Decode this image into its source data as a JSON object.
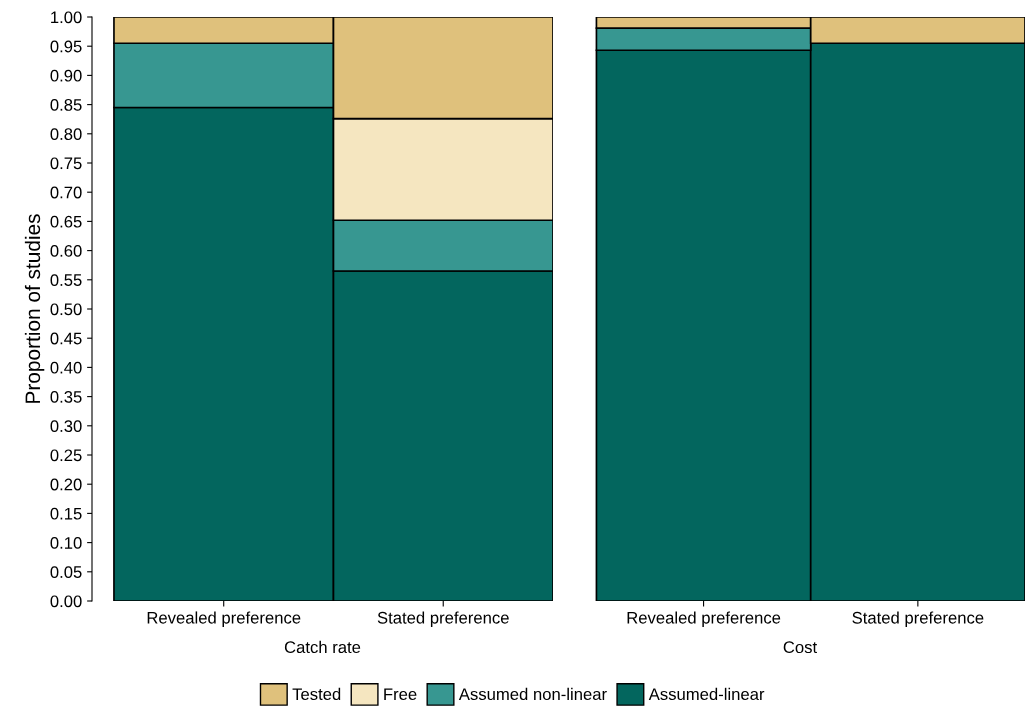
{
  "chart_data": [
    {
      "type": "bar",
      "stacked": true,
      "xlabel": "Catch rate",
      "ylabel": "Proportion of studies",
      "categories": [
        "Revealed preference",
        "Stated preference"
      ],
      "series": [
        {
          "name": "Assumed-linear",
          "color": "#03665e",
          "values": [
            0.845,
            0.565
          ]
        },
        {
          "name": "Assumed non-linear",
          "color": "#379791",
          "values": [
            0.11,
            0.087
          ]
        },
        {
          "name": "Free",
          "color": "#f5e6c0",
          "values": [
            0,
            0.174
          ]
        },
        {
          "name": "Tested",
          "color": "#dfc17c",
          "values": [
            0.045,
            0.174
          ]
        }
      ],
      "ylim": [
        0,
        1
      ],
      "yticks": [
        {
          "value": 0,
          "label": "0.00"
        },
        {
          "value": 0.05,
          "label": "0.05"
        },
        {
          "value": 0.1,
          "label": "0.10"
        },
        {
          "value": 0.15,
          "label": "0.15"
        },
        {
          "value": 0.2,
          "label": "0.20"
        },
        {
          "value": 0.25,
          "label": "0.25"
        },
        {
          "value": 0.3,
          "label": "0.30"
        },
        {
          "value": 0.35,
          "label": "0.35"
        },
        {
          "value": 0.4,
          "label": "0.40"
        },
        {
          "value": 0.45,
          "label": "0.45"
        },
        {
          "value": 0.5,
          "label": "0.50"
        },
        {
          "value": 0.55,
          "label": "0.55"
        },
        {
          "value": 0.6,
          "label": "0.60"
        },
        {
          "value": 0.65,
          "label": "0.65"
        },
        {
          "value": 0.7,
          "label": "0.70"
        },
        {
          "value": 0.75,
          "label": "0.75"
        },
        {
          "value": 0.8,
          "label": "0.80"
        },
        {
          "value": 0.85,
          "label": "0.85"
        },
        {
          "value": 0.9,
          "label": "0.90"
        },
        {
          "value": 0.95,
          "label": "0.95"
        },
        {
          "value": 1,
          "label": "1.00"
        }
      ],
      "legend": "bottom"
    },
    {
      "type": "bar",
      "stacked": true,
      "xlabel": "Cost",
      "categories": [
        "Revealed preference",
        "Stated preference"
      ],
      "series": [
        {
          "color": "#03665e",
          "values": [
            0.943,
            0.955
          ]
        },
        {
          "color": "#379791",
          "values": [
            0.038,
            0
          ]
        },
        {
          "color": "#f5e6c0",
          "values": [
            0,
            0
          ]
        },
        {
          "color": "#dfc17c",
          "values": [
            0.019,
            0.045
          ]
        }
      ],
      "ylim": [
        0,
        1
      ],
      "tick_labels": "x"
    }
  ]
}
